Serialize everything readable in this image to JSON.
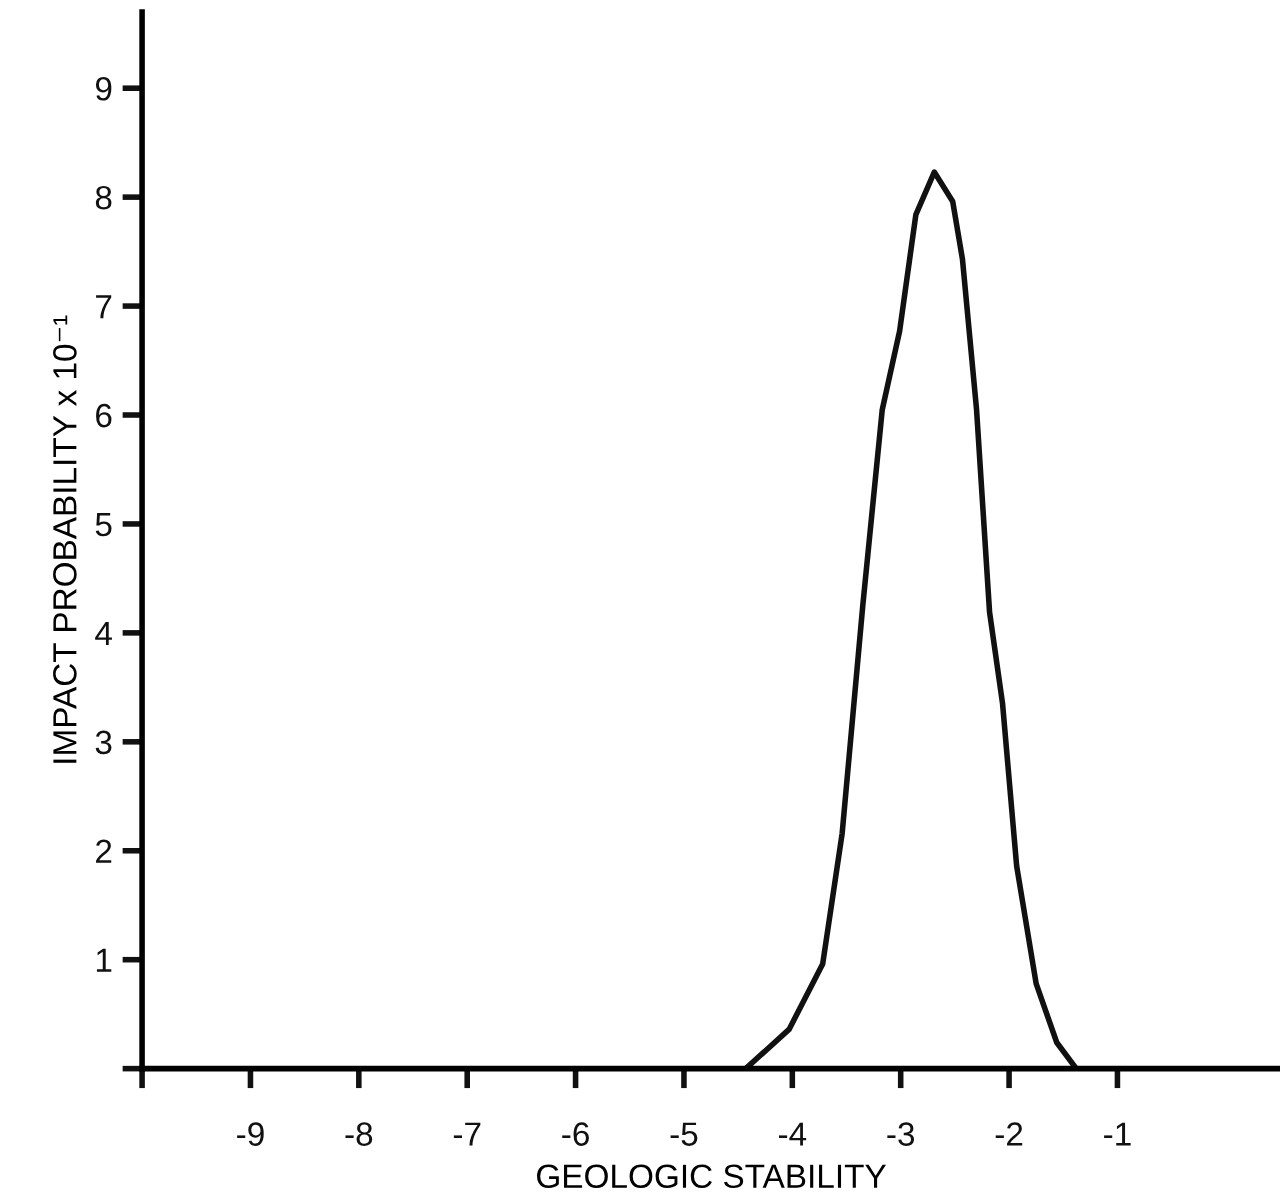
{
  "chart_data": {
    "type": "line",
    "xlabel": "GEOLOGIC STABILITY",
    "ylabel": "IMPACT PROBABILITY x 10⁻¹",
    "series": [
      {
        "color": "#111111",
        "x": [
          -4.43,
          -4.03,
          -3.72,
          -3.54,
          -3.35,
          -3.17,
          -3.01,
          -2.86,
          -2.69,
          -2.52,
          -2.43,
          -2.3,
          -2.18,
          -2.06,
          -1.93,
          -1.75,
          -1.56,
          -1.38
        ],
        "values": [
          0,
          0.36,
          0.96,
          2.16,
          4.25,
          6.05,
          6.77,
          7.84,
          8.23,
          7.96,
          7.43,
          6.05,
          4.19,
          3.35,
          1.86,
          0.78,
          0.24,
          0
        ]
      }
    ],
    "xlim": [
      -10,
      0.5
    ],
    "ylim": [
      0,
      9.7
    ],
    "xticks": [
      {
        "value": -10,
        "label": null
      },
      -9,
      -8,
      -7,
      -6,
      -5,
      -4,
      -3,
      -2,
      -1
    ],
    "yticks": [
      {
        "value": 0,
        "label": null
      },
      1,
      2,
      3,
      4,
      5,
      6,
      7,
      8,
      9
    ],
    "grid": false,
    "marker": "none",
    "line_style": "solid"
  }
}
